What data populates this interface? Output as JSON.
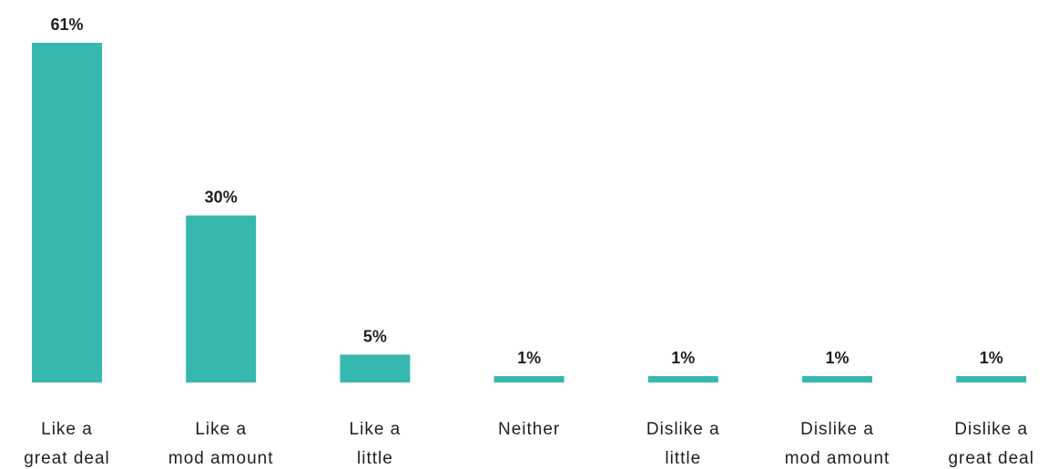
{
  "chart_data": {
    "type": "bar",
    "categories": [
      [
        "Like a",
        "great deal"
      ],
      [
        "Like a",
        "mod amount"
      ],
      [
        "Like a",
        "little"
      ],
      [
        "Neither"
      ],
      [
        "Dislike a",
        "little"
      ],
      [
        "Dislike a",
        "mod amount"
      ],
      [
        "Dislike a",
        "great deal"
      ]
    ],
    "values": [
      61,
      30,
      5,
      1,
      1,
      1,
      1
    ],
    "value_labels": [
      "61%",
      "30%",
      "5%",
      "1%",
      "1%",
      "1%",
      "1%"
    ],
    "ylim": [
      0,
      61
    ],
    "grid": false,
    "legend": "none",
    "colors": {
      "bar": "#37b8af",
      "text": "#1f1f1f"
    }
  }
}
